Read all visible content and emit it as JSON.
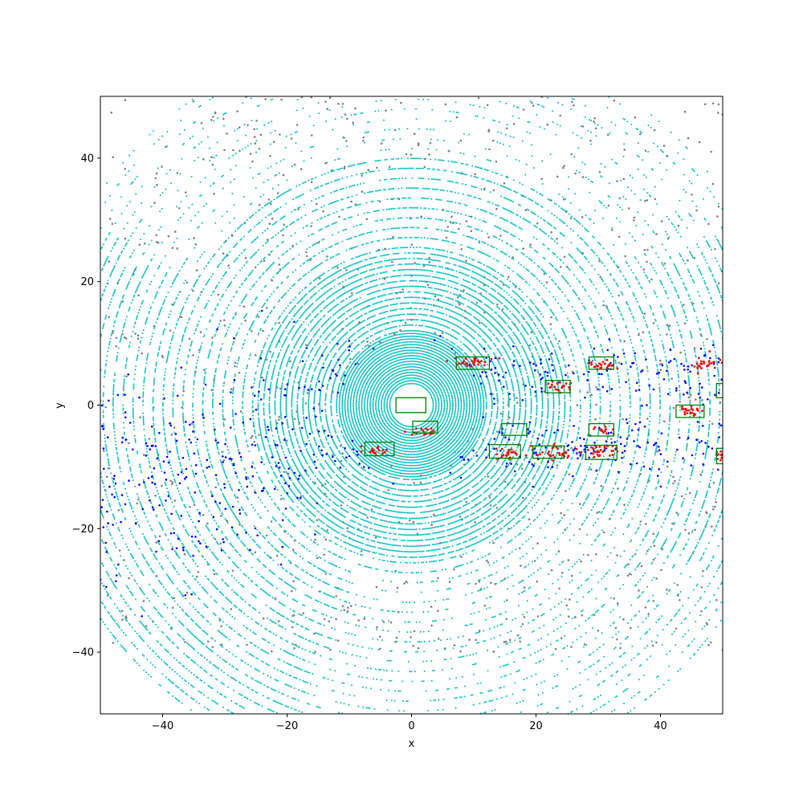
{
  "chart_data": {
    "type": "scatter",
    "title": "",
    "xlabel": "x",
    "ylabel": "y",
    "xlim": [
      -50,
      50
    ],
    "ylim": [
      -50,
      50
    ],
    "x_ticks": [
      -40,
      -20,
      0,
      20,
      40
    ],
    "y_ticks": [
      -40,
      -20,
      0,
      20,
      40
    ],
    "x_tick_labels": [
      "−40",
      "−20",
      "0",
      "20",
      "40"
    ],
    "y_tick_labels": [
      "−40",
      "−20",
      "0",
      "20",
      "40"
    ],
    "grid": false,
    "colors": {
      "ground": "#00bfbf",
      "other": "#808080",
      "road_blue": "#0000ff",
      "object": "#ff0000",
      "box": "#008000"
    },
    "boxes": [
      {
        "xmin": -2.5,
        "xmax": 2.3,
        "ymin": -1.2,
        "ymax": 1.2
      },
      {
        "xmin": 7.2,
        "xmax": 12.5,
        "ymin": 5.8,
        "ymax": 7.8
      },
      {
        "xmin": 0.2,
        "xmax": 4.2,
        "ymin": -4.5,
        "ymax": -2.6
      },
      {
        "xmin": -7.5,
        "xmax": -2.8,
        "ymin": -8.2,
        "ymax": -6.0
      },
      {
        "xmin": 12.5,
        "xmax": 17.5,
        "ymin": -8.6,
        "ymax": -6.4
      },
      {
        "xmin": 14.5,
        "xmax": 18.5,
        "ymin": -4.9,
        "ymax": -3.0
      },
      {
        "xmin": 19.5,
        "xmax": 24.5,
        "ymin": -8.6,
        "ymax": -6.6
      },
      {
        "xmin": 21.5,
        "xmax": 25.5,
        "ymin": 2.0,
        "ymax": 4.0
      },
      {
        "xmin": 28.5,
        "xmax": 32.5,
        "ymin": 5.8,
        "ymax": 7.8
      },
      {
        "xmin": 28.5,
        "xmax": 32.5,
        "ymin": -5.0,
        "ymax": -3.0
      },
      {
        "xmin": 28.0,
        "xmax": 33.0,
        "ymin": -8.8,
        "ymax": -6.5
      },
      {
        "xmin": 42.5,
        "xmax": 47.0,
        "ymin": -2.0,
        "ymax": 0.0
      },
      {
        "xmin": 49.0,
        "xmax": 50.0,
        "ymin": 1.2,
        "ymax": 3.5
      },
      {
        "xmin": 49.0,
        "xmax": 50.0,
        "ymin": -9.5,
        "ymax": -7.0
      }
    ],
    "red_clusters": [
      {
        "cx": 10.0,
        "cy": 7.0,
        "sx": 1.6,
        "sy": 0.5,
        "n": 30
      },
      {
        "cx": 2.3,
        "cy": -4.2,
        "sx": 1.2,
        "sy": 0.4,
        "n": 22
      },
      {
        "cx": -6.0,
        "cy": -7.5,
        "sx": 1.2,
        "sy": 0.5,
        "n": 20
      },
      {
        "cx": 16.0,
        "cy": -7.8,
        "sx": 1.3,
        "sy": 0.6,
        "n": 22
      },
      {
        "cx": 23.0,
        "cy": -7.5,
        "sx": 1.5,
        "sy": 0.6,
        "n": 26
      },
      {
        "cx": 23.5,
        "cy": 3.0,
        "sx": 1.2,
        "sy": 0.5,
        "n": 20
      },
      {
        "cx": 30.5,
        "cy": 6.5,
        "sx": 1.4,
        "sy": 0.5,
        "n": 24
      },
      {
        "cx": 30.5,
        "cy": -4.3,
        "sx": 1.1,
        "sy": 0.5,
        "n": 14
      },
      {
        "cx": 30.5,
        "cy": -7.5,
        "sx": 1.5,
        "sy": 0.6,
        "n": 30
      },
      {
        "cx": 45.0,
        "cy": -0.8,
        "sx": 1.0,
        "sy": 0.5,
        "n": 22
      },
      {
        "cx": 47.5,
        "cy": 6.5,
        "sx": 1.2,
        "sy": 0.8,
        "n": 26
      },
      {
        "cx": 49.5,
        "cy": -8.2,
        "sx": 0.4,
        "sy": 0.5,
        "n": 12
      }
    ]
  }
}
